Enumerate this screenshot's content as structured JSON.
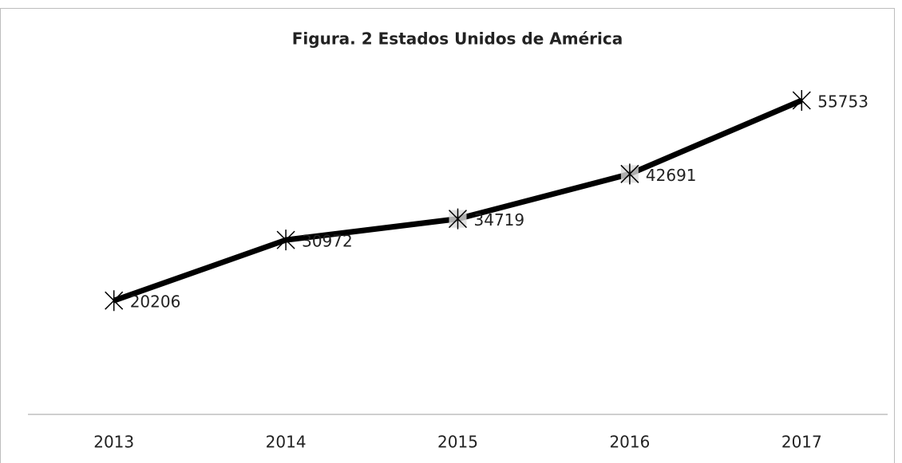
{
  "chart_data": {
    "type": "line",
    "title": "Figura. 2 Estados Unidos de América",
    "categories": [
      "2013",
      "2014",
      "2015",
      "2016",
      "2017"
    ],
    "values": [
      20206,
      30972,
      34719,
      42691,
      55753
    ],
    "color": "#000000",
    "ylim": [
      0,
      60000
    ]
  }
}
